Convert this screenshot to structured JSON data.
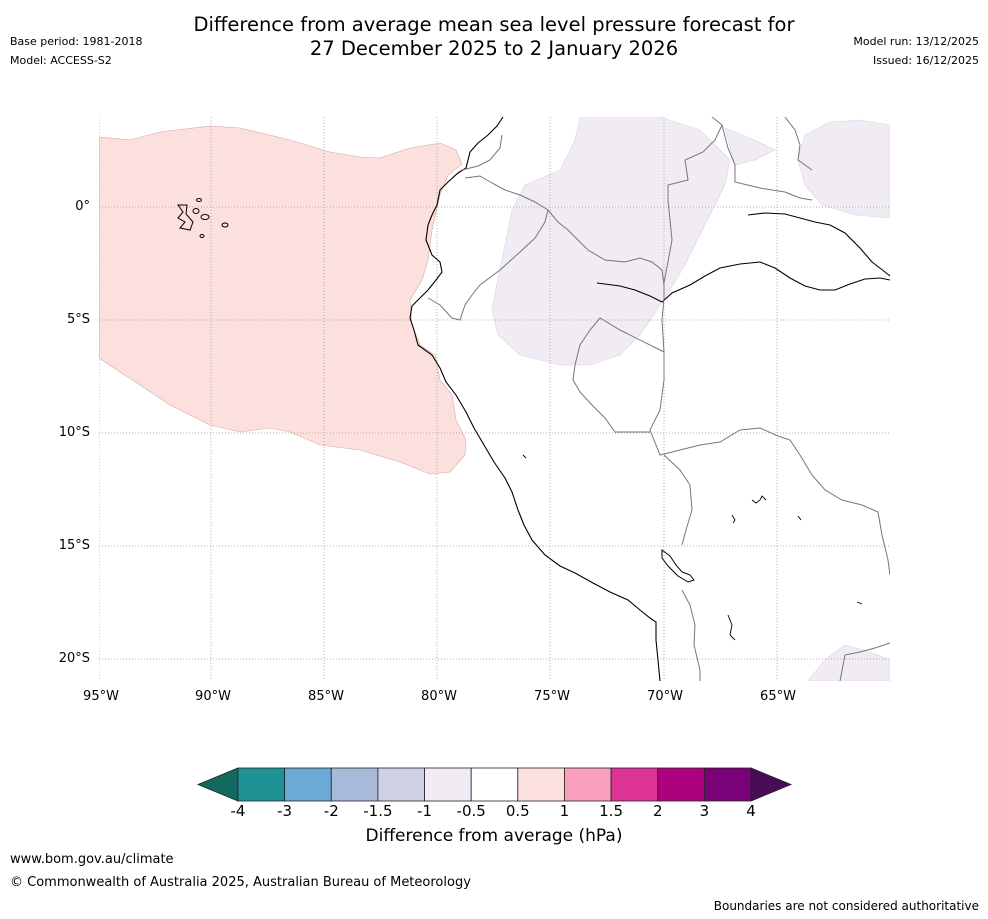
{
  "header": {
    "title_line1": "Difference from average mean sea level pressure forecast for",
    "title_line2": "27 December 2025 to 2 January 2026",
    "base_period": "Base period: 1981-2018",
    "model": "Model: ACCESS-S2",
    "model_run": "Model run: 13/12/2025",
    "issued": "Issued: 16/12/2025"
  },
  "map": {
    "longitudes": [
      "95°W",
      "90°W",
      "85°W",
      "80°W",
      "75°W",
      "70°W",
      "65°W"
    ],
    "latitudes": [
      "0°",
      "5°S",
      "10°S",
      "15°S",
      "20°S"
    ],
    "ocean_anomaly_category": "0.5 to 1",
    "land_anomaly_category": "-1 to -0.5"
  },
  "colorbar": {
    "ticks": [
      "-4",
      "-3",
      "-2",
      "-1.5",
      "-1",
      "-0.5",
      "0.5",
      "1",
      "1.5",
      "2",
      "3",
      "4"
    ],
    "colors": [
      "#11695f",
      "#1f9296",
      "#6aaad4",
      "#a8bad9",
      "#cfd2e6",
      "#f1ecf4",
      "#ffffff",
      "#fce0dd",
      "#f9a0bc",
      "#de3496",
      "#ae017e",
      "#7a0177",
      "#4a0b57"
    ],
    "label": "Difference from average (hPa)"
  },
  "footer": {
    "url": "www.bom.gov.au/climate",
    "copyright": "© Commonwealth of Australia 2025, Australian Bureau of Meteorology",
    "note": "Boundaries are not considered authoritative"
  }
}
